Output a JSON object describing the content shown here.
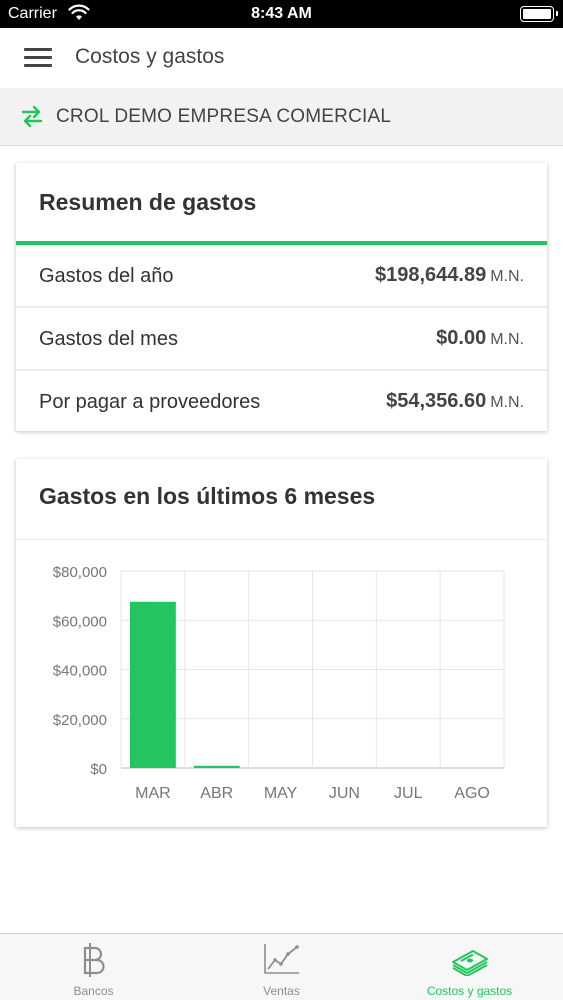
{
  "status_bar": {
    "carrier": "Carrier",
    "time": "8:43 AM"
  },
  "header": {
    "title": "Costos y gastos",
    "menu_icon": "hamburger-menu-icon"
  },
  "company": {
    "name": "CROL DEMO EMPRESA COMERCIAL",
    "icon": "swap-arrows-icon"
  },
  "summary": {
    "title": "Resumen de gastos",
    "rows": [
      {
        "label": "Gastos del año",
        "amount": "$198,644.89",
        "currency": "M.N."
      },
      {
        "label": "Gastos del mes",
        "amount": "$0.00",
        "currency": "M.N."
      },
      {
        "label": "Por pagar a proveedores",
        "amount": "$54,356.60",
        "currency": "M.N."
      }
    ]
  },
  "chart_card": {
    "title": "Gastos en los últimos 6 meses"
  },
  "chart_data": {
    "type": "bar",
    "categories": [
      "MAR",
      "ABR",
      "MAY",
      "JUN",
      "JUL",
      "AGO"
    ],
    "values": [
      67500,
      900,
      0,
      0,
      0,
      0
    ],
    "ylim": [
      0,
      80000
    ],
    "yticks": [
      0,
      20000,
      40000,
      60000,
      80000
    ],
    "ytick_labels": [
      "$0",
      "$20,000",
      "$40,000",
      "$60,000",
      "$80,000"
    ],
    "bar_color": "#22c55e",
    "grid": true
  },
  "tabs": [
    {
      "label": "Bancos",
      "icon": "bitcoin-icon",
      "active": false
    },
    {
      "label": "Ventas",
      "icon": "line-chart-icon",
      "active": false
    },
    {
      "label": "Costos y gastos",
      "icon": "money-stack-icon",
      "active": true
    }
  ],
  "colors": {
    "accent": "#22c55e",
    "text": "#333333",
    "inactive": "#8e8e8e"
  }
}
